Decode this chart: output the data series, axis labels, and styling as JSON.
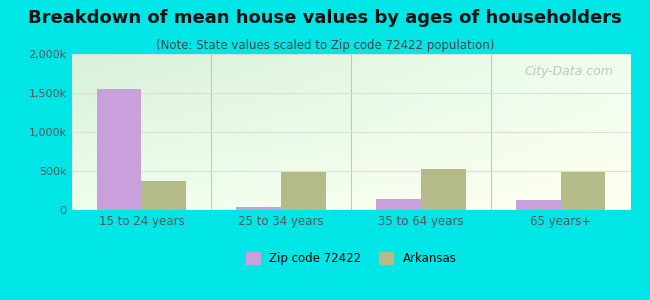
{
  "title": "Breakdown of mean house values by ages of householders",
  "subtitle": "(Note: State values scaled to Zip code 72422 population)",
  "categories": [
    "15 to 24 years",
    "25 to 34 years",
    "35 to 64 years",
    "65 years+"
  ],
  "zip_values": [
    1550000,
    35000,
    140000,
    130000
  ],
  "state_values": [
    370000,
    490000,
    520000,
    490000
  ],
  "zip_color": "#c9a0dc",
  "state_color": "#b5bb88",
  "background_color": "#00e5e5",
  "plot_bg_top_left": "#d8f0d8",
  "plot_bg_bottom_right": "#fffff0",
  "ylim": [
    0,
    2000000
  ],
  "yticks": [
    0,
    500000,
    1000000,
    1500000,
    2000000
  ],
  "ytick_labels": [
    "0",
    "500k",
    "1,000k",
    "1,500k",
    "2,000k"
  ],
  "watermark": "City-Data.com",
  "bar_width": 0.32,
  "title_fontsize": 13,
  "subtitle_fontsize": 8.5
}
